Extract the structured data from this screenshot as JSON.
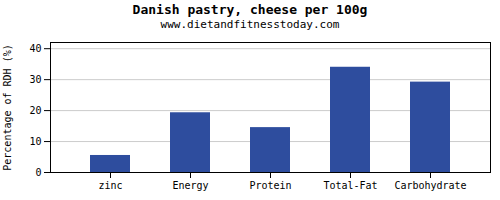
{
  "chart_data": {
    "type": "bar",
    "title": "Danish pastry, cheese per 100g",
    "subtitle": "www.dietandfitnesstoday.com",
    "categories": [
      "zinc",
      "Energy",
      "Protein",
      "Total-Fat",
      "Carbohydrate"
    ],
    "values": [
      5.5,
      19.3,
      14.5,
      34.0,
      29.2
    ],
    "color": "#2e4d9e",
    "ylabel": "Percentage of RDH (%)",
    "ylim": [
      0,
      42
    ],
    "yticks": [
      0,
      10,
      20,
      30,
      40
    ],
    "grid": true
  }
}
